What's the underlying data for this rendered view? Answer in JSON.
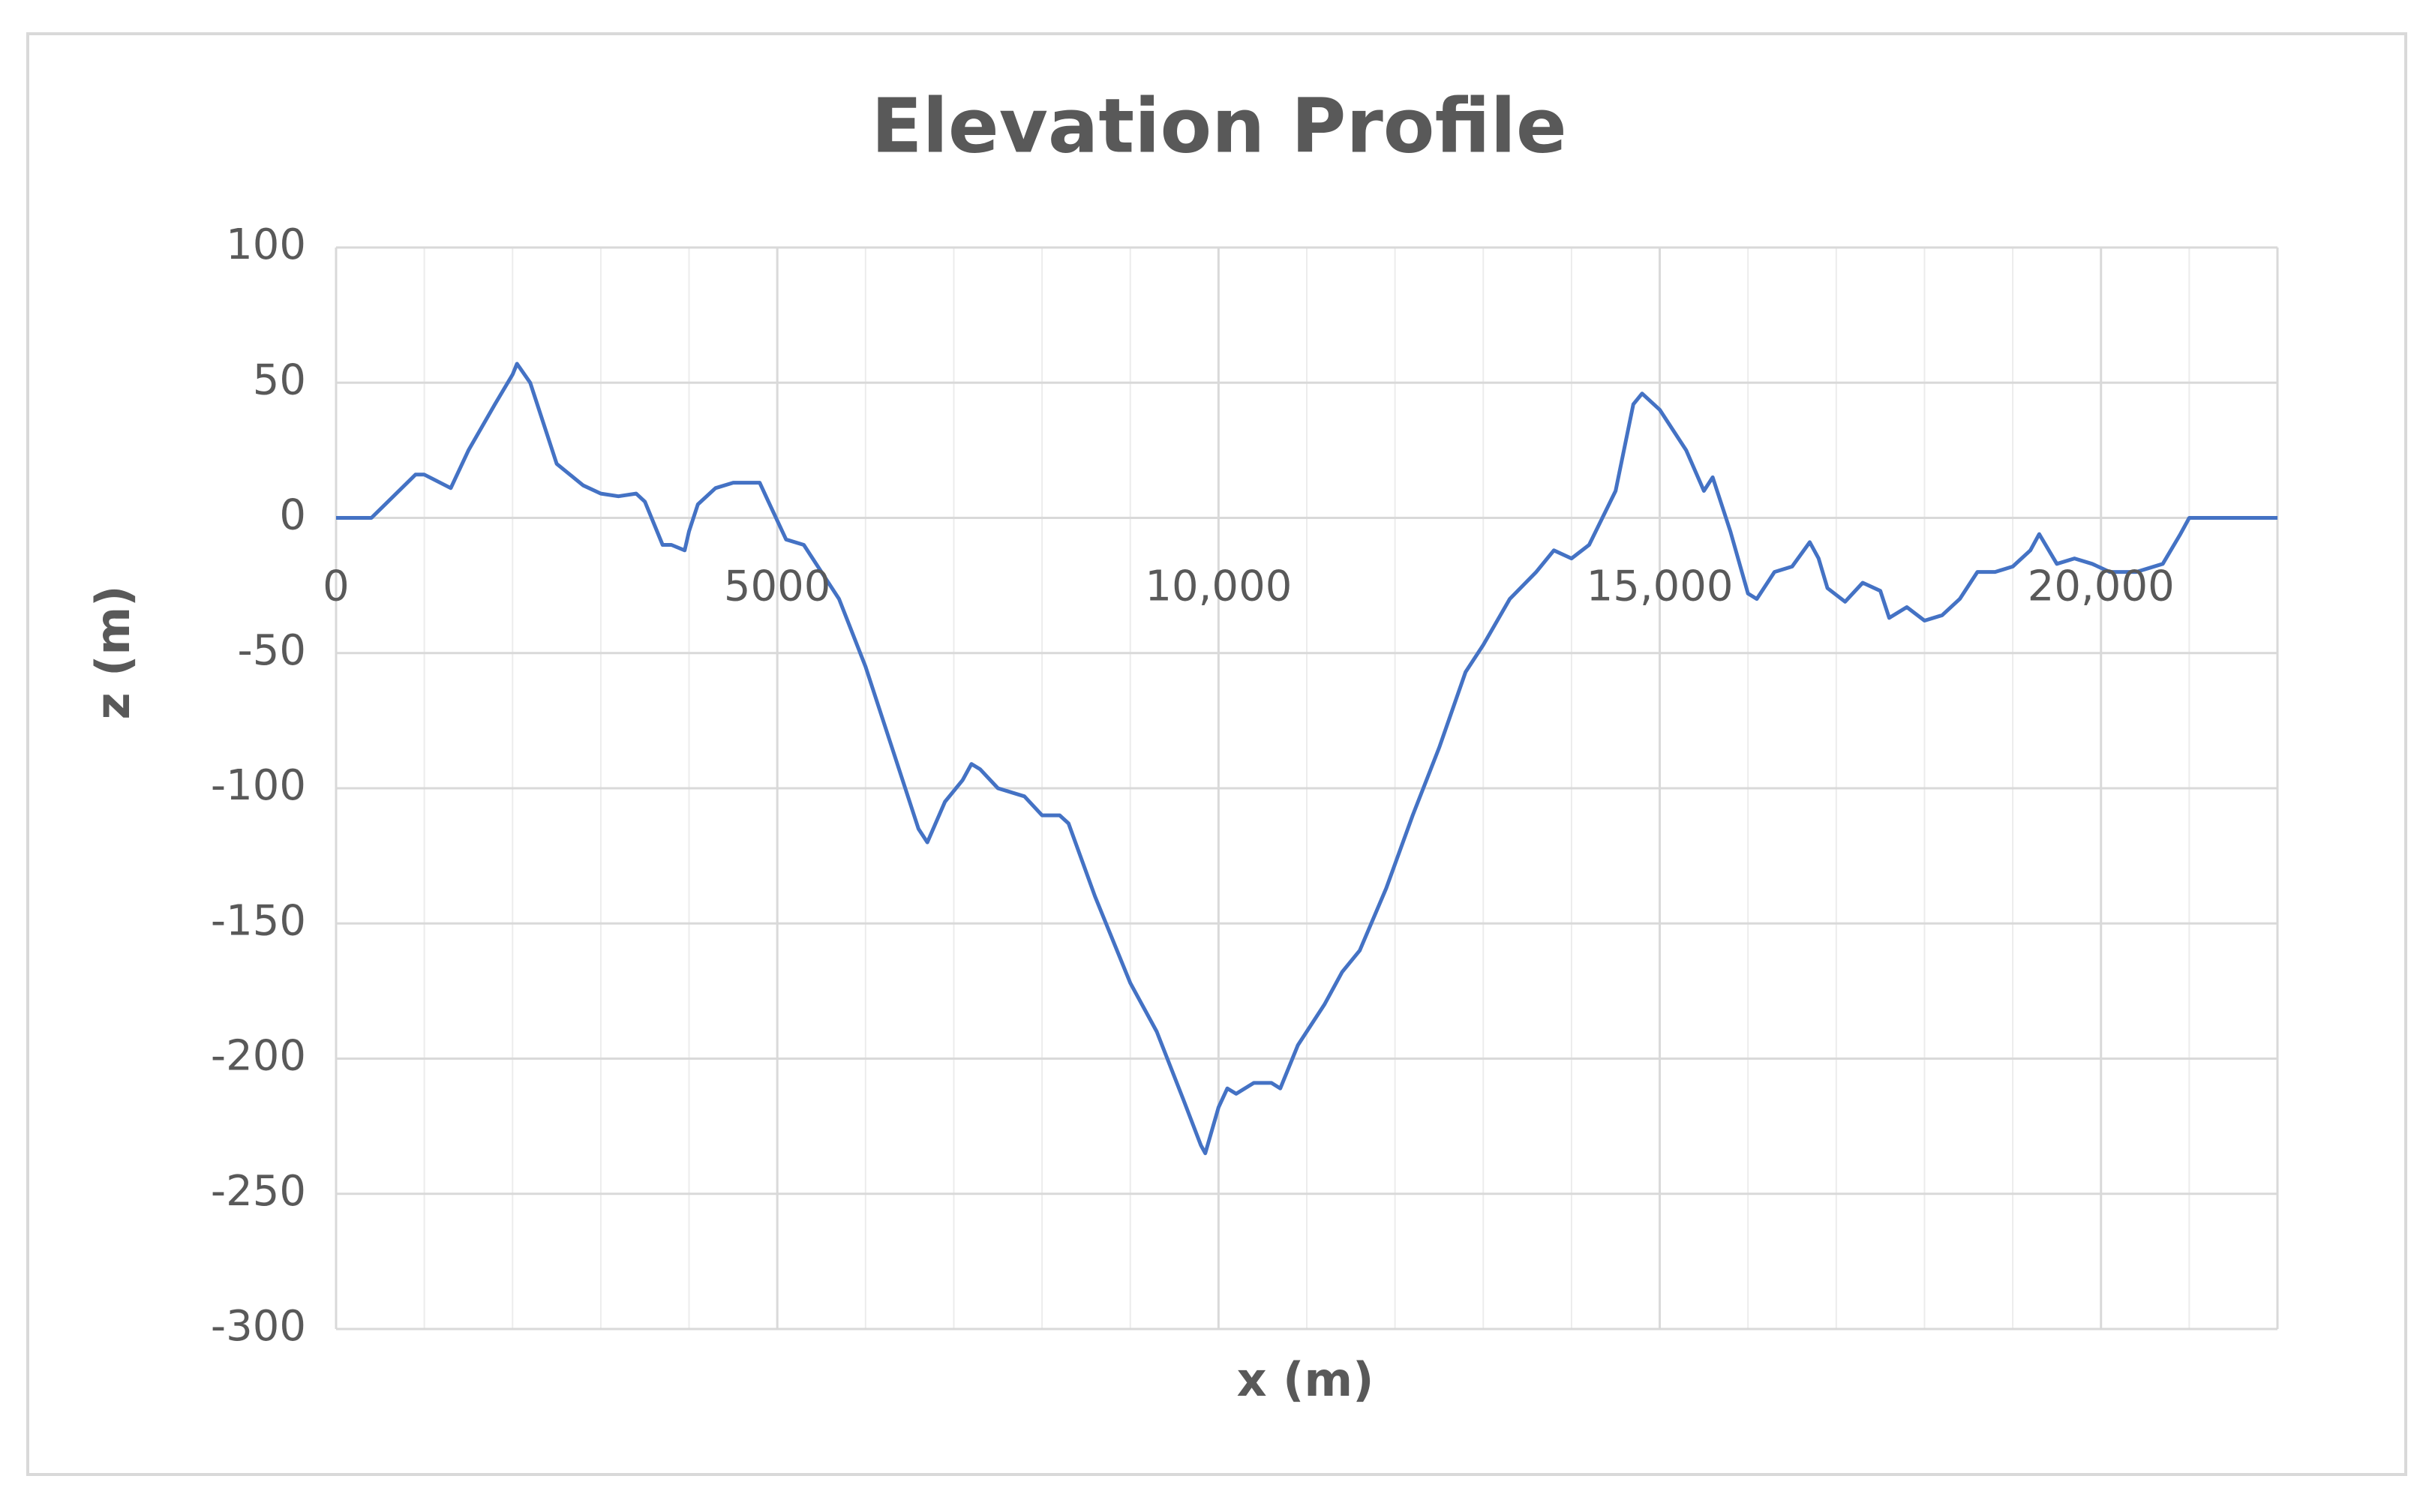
{
  "chart_data": {
    "type": "line",
    "title": "Elevation Profile",
    "x_label": "x (m)",
    "y_label": "z (m)",
    "xlim": [
      0,
      22000
    ],
    "ylim": [
      -300,
      100
    ],
    "xticks": [
      0,
      5000,
      {
        "value": 10000,
        "label": "10,000"
      },
      {
        "value": 15000,
        "label": "15,000"
      },
      {
        "value": 20000,
        "label": "20,000"
      }
    ],
    "yticks": [
      -300,
      -250,
      -200,
      -150,
      -100,
      -50,
      0,
      50,
      100
    ],
    "grid": true,
    "minor_grid": true,
    "series": [
      {
        "name": "z",
        "color": "#4472c4",
        "x": [
          0,
          400,
          900,
          1000,
          1300,
          1500,
          1800,
          2000,
          2050,
          2200,
          2500,
          2800,
          3000,
          3200,
          3400,
          3500,
          3700,
          3800,
          3950,
          4000,
          4100,
          4300,
          4500,
          4800,
          4900,
          5100,
          5300,
          5500,
          5700,
          6000,
          6300,
          6600,
          6700,
          6900,
          7100,
          7200,
          7300,
          7500,
          7800,
          8000,
          8200,
          8300,
          8600,
          9000,
          9300,
          9600,
          9800,
          9850,
          10000,
          10100,
          10200,
          10400,
          10600,
          10700,
          10900,
          11200,
          11400,
          11600,
          11900,
          12200,
          12500,
          12800,
          13000,
          13300,
          13600,
          13800,
          14000,
          14200,
          14500,
          14700,
          14800,
          15000,
          15300,
          15500,
          15600,
          15800,
          16000,
          16100,
          16300,
          16500,
          16700,
          16800,
          16900,
          17100,
          17300,
          17500,
          17600,
          17800,
          18000,
          18200,
          18400,
          18600,
          18800,
          19000,
          19200,
          19300,
          19500,
          19700,
          19900,
          20100,
          20400,
          20700,
          20900,
          21000,
          22000
        ],
        "values": [
          0,
          0,
          16,
          16,
          11,
          25,
          42,
          53,
          57,
          50,
          20,
          12,
          9,
          8,
          9,
          6,
          -10,
          -10,
          -12,
          -5,
          5,
          11,
          13,
          13,
          6,
          -8,
          -10,
          -20,
          -30,
          -55,
          -85,
          -115,
          -120,
          -105,
          -97,
          -91,
          -93,
          -100,
          -103,
          -110,
          -110,
          -113,
          -140,
          -172,
          -190,
          -215,
          -232,
          -235,
          -218,
          -211,
          -213,
          -209,
          -209,
          -211,
          -195,
          -180,
          -168,
          -160,
          -137,
          -110,
          -85,
          -57,
          -47,
          -30,
          -20,
          -12,
          -15,
          -10,
          10,
          42,
          46,
          40,
          25,
          10,
          15,
          -5,
          -28,
          -30,
          -20,
          -18,
          -9,
          -15,
          -26,
          -31,
          -24,
          -27,
          -37,
          -33,
          -38,
          -36,
          -30,
          -20,
          -20,
          -18,
          -12,
          -6,
          -17,
          -15,
          -17,
          -20,
          -20,
          -17,
          -6,
          0,
          0
        ]
      }
    ]
  }
}
